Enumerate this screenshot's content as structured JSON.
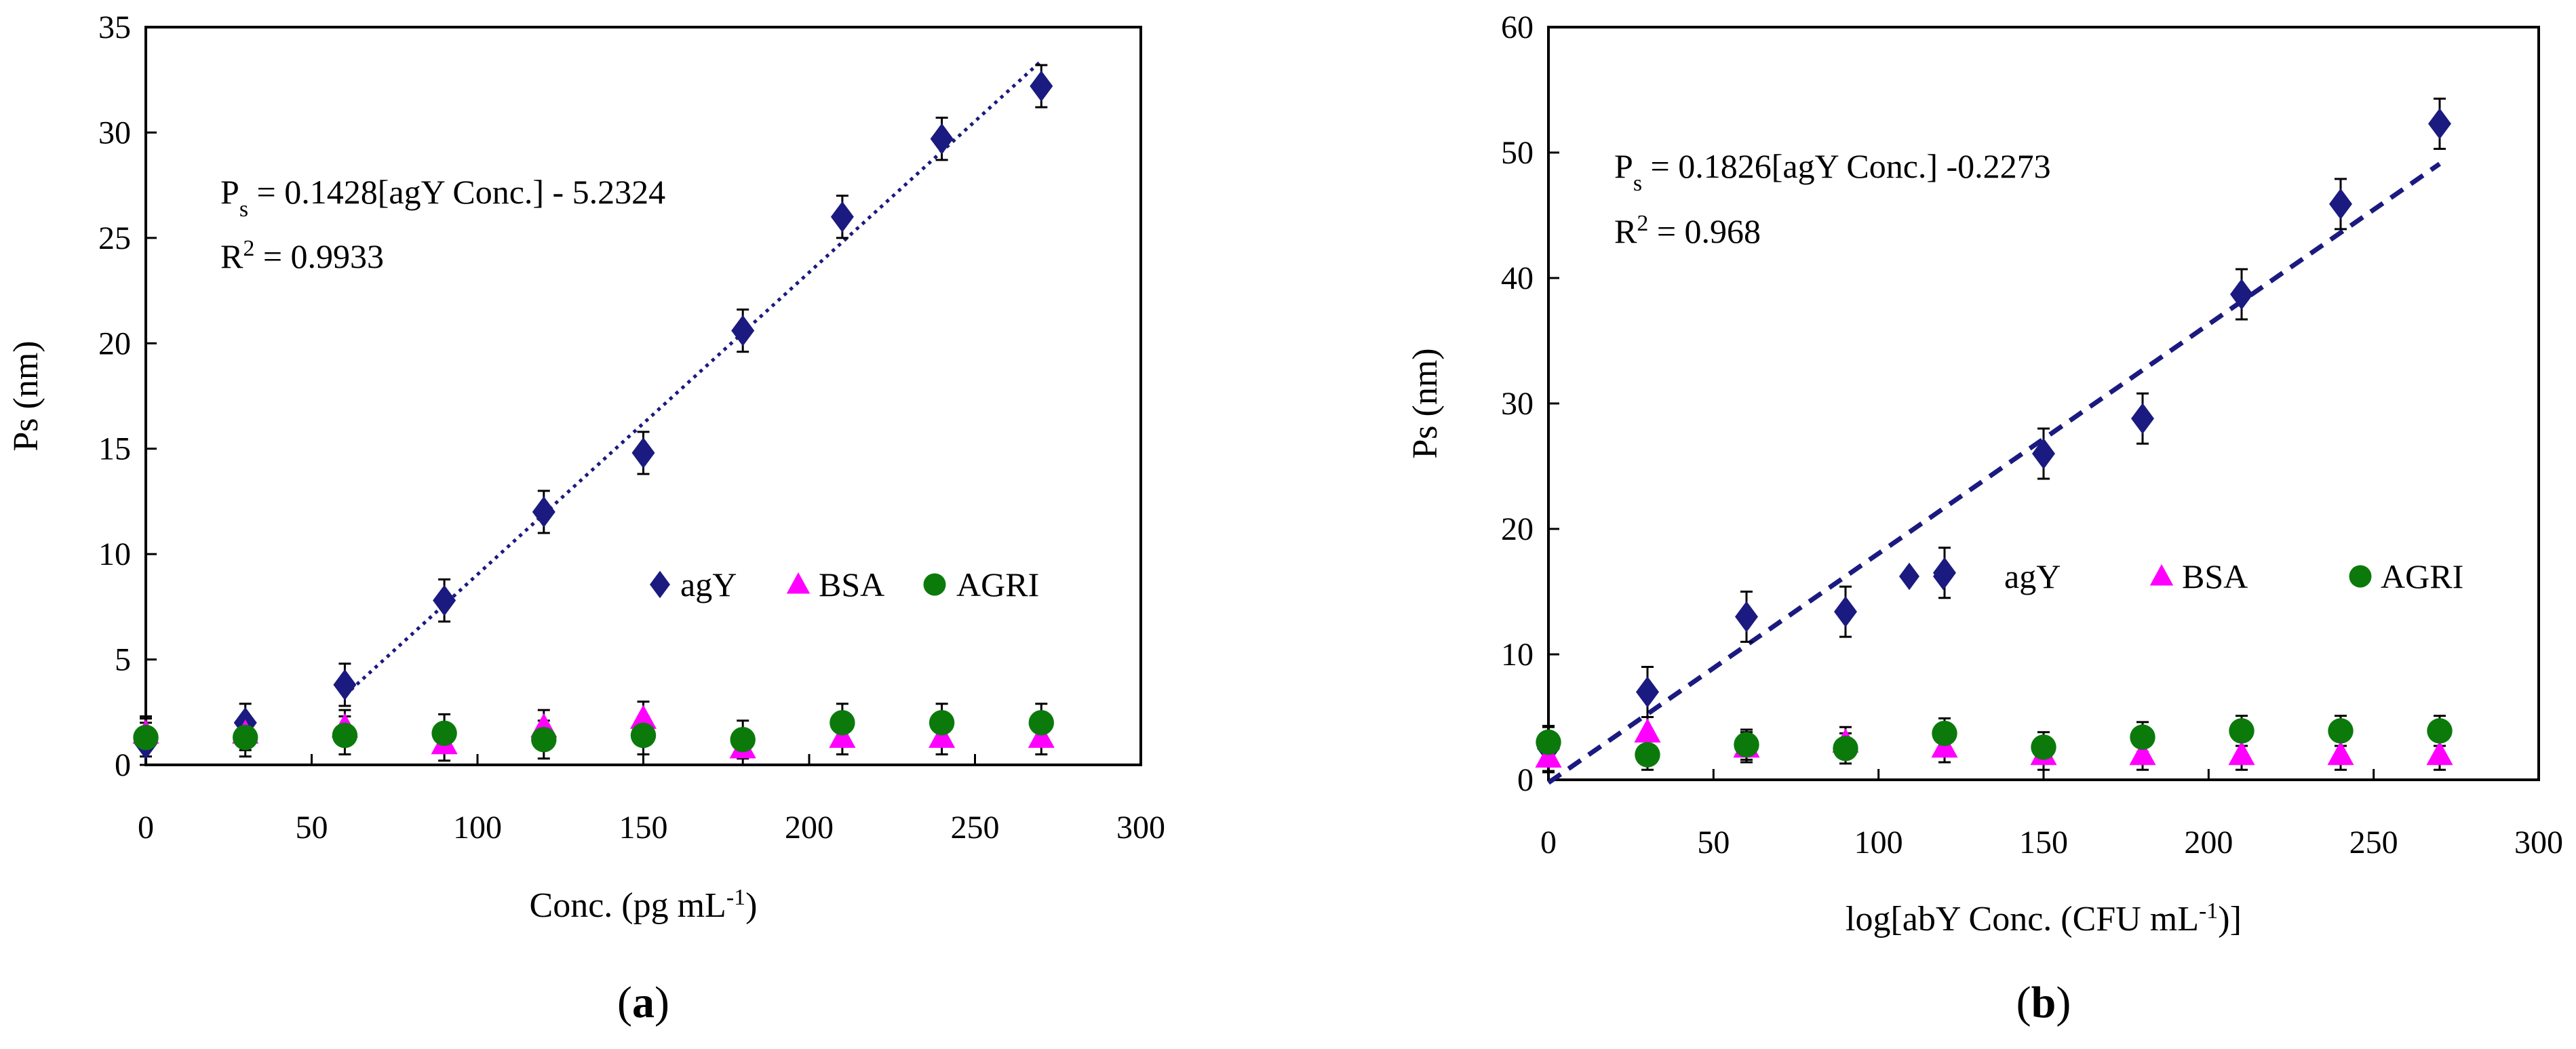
{
  "figure": {
    "panels": [
      {
        "label_open": "(",
        "label_letter": "a",
        "label_close": ")"
      },
      {
        "label_open": "(",
        "label_letter": "b",
        "label_close": ")"
      }
    ]
  },
  "chart_data": [
    {
      "type": "scatter",
      "panel": "a",
      "xlabel_main": "Conc. (pg mL",
      "xlabel_sup": "-1",
      "xlabel_tail": ")",
      "ylabel": "Ps (nm)",
      "xlim": [
        0,
        300
      ],
      "ylim": [
        0,
        35
      ],
      "xticks": [
        0,
        50,
        100,
        150,
        200,
        250,
        300
      ],
      "yticks": [
        0,
        5,
        10,
        15,
        20,
        25,
        30,
        35
      ],
      "equation": {
        "lhs": "P",
        "lhs_sub": "s",
        "rhs": " = 0.1428[agY Conc.] - 5.2324"
      },
      "r2": {
        "prefix": "R",
        "sup": "2",
        "value": " = 0.9933"
      },
      "legend_position": "center-right",
      "fit": {
        "series": "agY",
        "style": "dotted",
        "x": [
          60,
          270
        ],
        "y": [
          3.3,
          33.4
        ]
      },
      "series": [
        {
          "name": "agY",
          "marker": "diamond",
          "color": "#1a1a80",
          "x": [
            0,
            30,
            60,
            90,
            120,
            150,
            180,
            210,
            240,
            270
          ],
          "y": [
            1.0,
            2.0,
            3.8,
            7.8,
            12.0,
            14.8,
            20.6,
            26.0,
            29.7,
            32.2
          ],
          "err": [
            1.0,
            0.9,
            1.0,
            1.0,
            1.0,
            1.0,
            1.0,
            1.0,
            1.0,
            1.0
          ]
        },
        {
          "name": "BSA",
          "marker": "triangle",
          "color": "#ff00ff",
          "x": [
            0,
            30,
            60,
            90,
            120,
            150,
            180,
            210,
            240,
            270
          ],
          "y": [
            1.5,
            1.5,
            1.8,
            1.0,
            1.8,
            2.2,
            0.8,
            1.3,
            1.3,
            1.3
          ],
          "err": [
            0.8,
            0.8,
            0.8,
            0.8,
            0.8,
            0.8,
            0.8,
            0.8,
            0.8,
            0.8
          ]
        },
        {
          "name": "AGRI",
          "marker": "circle",
          "color": "#0b7a0b",
          "x": [
            0,
            30,
            60,
            90,
            120,
            150,
            180,
            210,
            240,
            270
          ],
          "y": [
            1.3,
            1.3,
            1.4,
            1.5,
            1.2,
            1.4,
            1.2,
            2.0,
            2.0,
            2.0
          ],
          "err": [
            0.9,
            0.9,
            0.9,
            0.9,
            0.9,
            0.9,
            0.9,
            0.9,
            0.9,
            0.9
          ]
        }
      ]
    },
    {
      "type": "scatter",
      "panel": "b",
      "xlabel_main": "log[abY Conc. (CFU mL",
      "xlabel_sup": "-1",
      "xlabel_tail": ")]",
      "ylabel": "Ps (nm)",
      "xlim": [
        0,
        300
      ],
      "ylim": [
        0,
        60
      ],
      "xticks": [
        0,
        50,
        100,
        150,
        200,
        250,
        300
      ],
      "yticks": [
        0,
        10,
        20,
        30,
        40,
        50,
        60
      ],
      "equation": {
        "lhs": "P",
        "lhs_sub": "s",
        "rhs": " = 0.1826[agY Conc.] -0.2273"
      },
      "r2": {
        "prefix": "R",
        "sup": "2",
        "value": " = 0.968"
      },
      "legend_position": "center-right",
      "fit": {
        "series": "agY",
        "style": "dashed",
        "x": [
          0,
          270
        ],
        "y": [
          -0.23,
          49.1
        ]
      },
      "series": [
        {
          "name": "agY",
          "marker": "diamond",
          "color": "#1a1a80",
          "x": [
            0,
            30,
            60,
            90,
            120,
            150,
            180,
            210,
            240,
            270
          ],
          "y": [
            2.5,
            7.0,
            13.0,
            13.4,
            16.5,
            26.0,
            28.8,
            38.7,
            45.9,
            52.3
          ],
          "err": [
            1.8,
            2.0,
            2.0,
            2.0,
            2.0,
            2.0,
            2.0,
            2.0,
            2.0,
            2.0
          ]
        },
        {
          "name": "BSA",
          "marker": "triangle",
          "color": "#ff00ff",
          "x": [
            0,
            30,
            60,
            90,
            120,
            150,
            180,
            210,
            240,
            270
          ],
          "y": [
            1.8,
            3.8,
            2.6,
            3.0,
            2.6,
            2.0,
            2.0,
            2.0,
            2.0,
            2.0
          ],
          "err": [
            1.2,
            1.2,
            1.2,
            1.2,
            1.2,
            1.2,
            1.2,
            1.2,
            1.2,
            1.2
          ]
        },
        {
          "name": "AGRI",
          "marker": "circle",
          "color": "#0b7a0b",
          "x": [
            0,
            30,
            60,
            90,
            120,
            150,
            180,
            210,
            240,
            270
          ],
          "y": [
            3.0,
            2.0,
            2.8,
            2.5,
            3.7,
            2.6,
            3.4,
            3.9,
            3.9,
            3.9
          ],
          "err": [
            1.2,
            1.2,
            1.2,
            1.2,
            1.2,
            1.2,
            1.2,
            1.2,
            1.2,
            1.2
          ]
        }
      ]
    }
  ]
}
